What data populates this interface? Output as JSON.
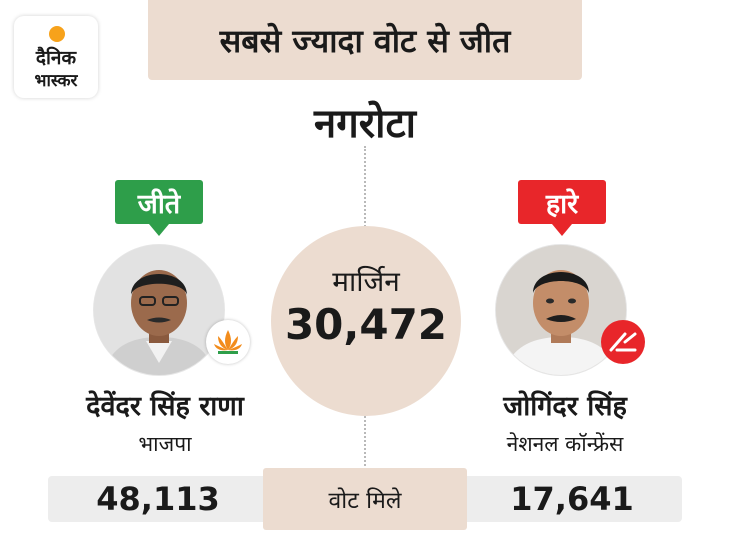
{
  "brand": {
    "line1": "दैनिक",
    "line2": "भास्कर",
    "sun_color": "#f7a21b"
  },
  "header": {
    "title": "सबसे ज्यादा वोट से जीत"
  },
  "constituency": "नगरोटा",
  "margin": {
    "label": "मार्जिन",
    "value": "30,472"
  },
  "winner": {
    "badge": "जीते",
    "name": "देवेंदर सिंह राणा",
    "party": "भाजपा",
    "votes": "48,113",
    "badge_color": "#2e9e4a",
    "party_icon": "lotus-icon"
  },
  "loser": {
    "badge": "हारे",
    "name": "जोगिंदर सिंह",
    "party": "नेशनल कॉन्फ्रेंस",
    "votes": "17,641",
    "badge_color": "#e8262a",
    "party_icon": "plough-icon"
  },
  "votes_label": "वोट मिले",
  "colors": {
    "beige": "#ecdcd0",
    "bar": "#ededed"
  }
}
